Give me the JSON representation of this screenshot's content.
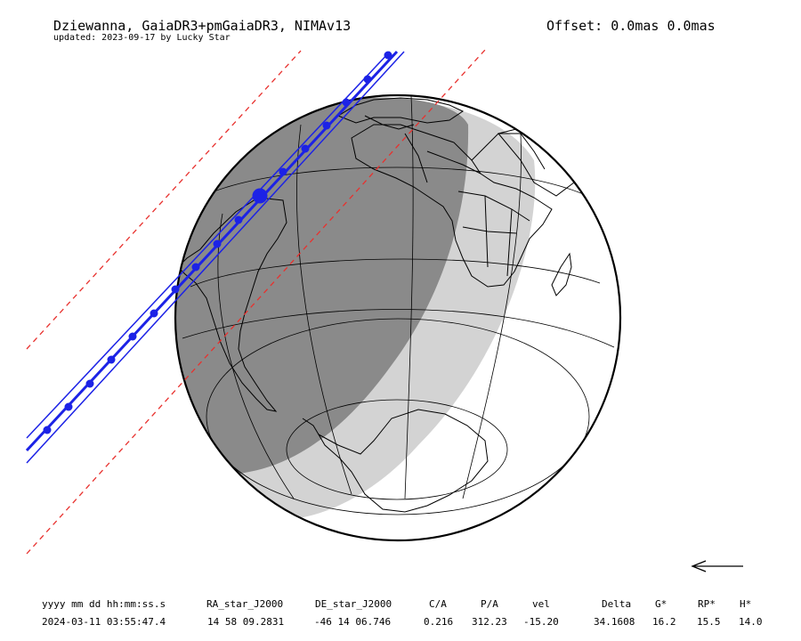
{
  "header": {
    "title": "Dziewanna, GaiaDR3+pmGaiaDR3, NIMAv13",
    "subtitle": "updated: 2023-09-17 by Lucky Star",
    "offset": "Offset: 0.0mas 0.0mas"
  },
  "table": {
    "headers": [
      "yyyy mm dd hh:mm:ss.s",
      "RA_star_J2000",
      "DE_star_J2000",
      "C/A",
      "P/A",
      "vel",
      "Delta",
      "G*",
      "RP*",
      "H*"
    ],
    "values": [
      "2024-03-11 03:55:47.4",
      "14 58 09.2831",
      "-46 14 06.746",
      "0.216",
      "312.23",
      "-15.20",
      "34.1608",
      "16.2",
      "15.5",
      "14.0"
    ]
  },
  "colors": {
    "path": "#1c22e6",
    "sigma": "#e8312e",
    "night": "#8a8a8a",
    "twilight": "#d3d3d3"
  },
  "icons": {
    "direction": "left-arrow-icon"
  }
}
